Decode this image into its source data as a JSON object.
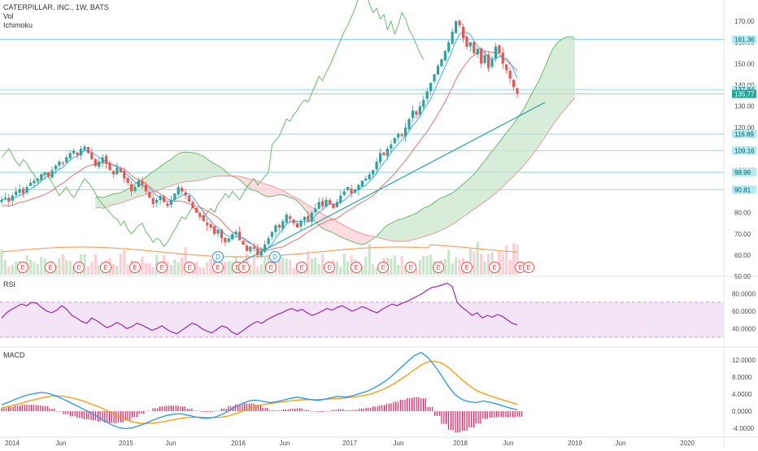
{
  "header": {
    "title": "CATERPILLAR, INC., 1W, BATS",
    "indicator_1": "Vol",
    "indicator_2": "Ichimoku"
  },
  "colors": {
    "price_up": "#26a69a",
    "price_down": "#ef5350",
    "cloud_bull": "#4caf50",
    "cloud_bear": "#ef5350",
    "conversion": "#2196f3",
    "base": "#d32f2f",
    "lagging": "#66bb6a",
    "rsi": "#9c27b0",
    "macd": "#2196f3",
    "signal": "#ff9800",
    "hist": "#e91e63",
    "trendline": "#26a69a",
    "hline": "#00bcd4",
    "axis_text": "#4a4a4a"
  },
  "price_axis": {
    "ticks": [
      "170.00",
      "160.00",
      "150.00",
      "140.00",
      "130.00",
      "120.00",
      "110.00",
      "100.00",
      "90.00",
      "80.00",
      "70.00",
      "60.00",
      "50.00"
    ],
    "badges": [
      {
        "label": "161.36",
        "style": "line"
      },
      {
        "label": "137.84",
        "style": "line"
      },
      {
        "label": "135.77",
        "style": "current"
      },
      {
        "label": "116.89",
        "style": "line"
      },
      {
        "label": "109.16",
        "style": "line"
      },
      {
        "label": "98.96",
        "style": "line"
      },
      {
        "label": "90.81",
        "style": "line"
      }
    ]
  },
  "rsi_panel": {
    "label": "RSI",
    "ticks": [
      "80.0000",
      "60.0000",
      "40.0000"
    ]
  },
  "macd_panel": {
    "label": "MACD",
    "ticks": [
      "12.0000",
      "8.0000",
      "4.0000",
      "0.0000",
      "-4.0000"
    ]
  },
  "time_axis": {
    "labels": [
      "2014",
      "Jun",
      "2015",
      "Jun",
      "2016",
      "Jun",
      "2017",
      "Jun",
      "2018",
      "Jun",
      "2019",
      "Jun",
      "2020"
    ]
  },
  "event_markers": [
    {
      "label": "E"
    },
    {
      "label": "E"
    },
    {
      "label": "E"
    },
    {
      "label": "E"
    },
    {
      "label": "E"
    },
    {
      "label": "E"
    },
    {
      "label": "E"
    },
    {
      "label": "E"
    },
    {
      "label": "E"
    },
    {
      "label": "D"
    },
    {
      "label": "E"
    },
    {
      "label": "D"
    },
    {
      "label": "E"
    },
    {
      "label": "E"
    },
    {
      "label": "E"
    },
    {
      "label": "E"
    },
    {
      "label": "E"
    },
    {
      "label": "E"
    },
    {
      "label": "E"
    },
    {
      "label": "E"
    },
    {
      "label": "E"
    },
    {
      "label": "E"
    },
    {
      "label": "E"
    }
  ],
  "chart_data": {
    "type": "candlestick",
    "ylim": [
      50,
      178
    ],
    "price_scale": "linear",
    "grid": false,
    "closes": [
      86,
      87,
      85,
      88,
      90,
      91,
      89,
      92,
      94,
      95,
      96,
      98,
      99,
      97,
      100,
      102,
      104,
      103,
      106,
      108,
      109,
      107,
      110,
      111,
      108,
      105,
      102,
      104,
      106,
      103,
      100,
      98,
      101,
      99,
      96,
      94,
      90,
      92,
      95,
      93,
      90,
      87,
      84,
      86,
      88,
      85,
      83,
      86,
      89,
      92,
      90,
      88,
      85,
      82,
      80,
      78,
      76,
      74,
      73,
      70,
      72,
      68,
      66,
      68,
      70,
      71,
      67,
      65,
      62,
      64,
      63,
      60,
      62,
      65,
      68,
      71,
      74,
      73,
      76,
      79,
      77,
      75,
      73,
      76,
      78,
      76,
      80,
      82,
      85,
      83,
      86,
      84,
      82,
      85,
      88,
      90,
      92,
      89,
      91,
      93,
      95,
      96,
      98,
      100,
      104,
      108,
      107,
      110,
      112,
      115,
      117,
      116,
      120,
      124,
      128,
      126,
      130,
      133,
      137,
      141,
      145,
      149,
      152,
      156,
      160,
      165,
      170,
      168,
      162,
      158,
      160,
      155,
      157,
      150,
      154,
      148,
      152,
      158,
      155,
      150,
      147,
      143,
      139,
      136
    ]
  },
  "rsi_data": {
    "type": "line",
    "ylim": [
      30,
      92
    ],
    "band": [
      30,
      70
    ],
    "values": [
      52,
      58,
      62,
      65,
      68,
      66,
      70,
      69,
      64,
      60,
      58,
      61,
      66,
      62,
      55,
      52,
      48,
      46,
      52,
      49,
      45,
      41,
      43,
      47,
      44,
      40,
      42,
      46,
      44,
      41,
      38,
      40,
      43,
      39,
      36,
      34,
      38,
      42,
      46,
      44,
      40,
      37,
      35,
      39,
      43,
      41,
      36,
      33,
      37,
      41,
      45,
      48,
      46,
      50,
      53,
      56,
      58,
      61,
      63,
      60,
      62,
      58,
      55,
      57,
      60,
      63,
      61,
      64,
      66,
      63,
      60,
      62,
      65,
      63,
      60,
      58,
      62,
      65,
      68,
      66,
      69,
      71,
      74,
      77,
      80,
      84,
      87,
      88,
      90,
      92,
      88,
      70,
      64,
      60,
      55,
      58,
      52,
      55,
      53,
      56,
      54,
      50,
      46,
      44
    ]
  },
  "macd_data": {
    "type": "line+histogram",
    "ylim": [
      -6,
      15
    ],
    "macd": [
      1.5,
      2.1,
      2.8,
      3.4,
      3.9,
      4.2,
      4.4,
      4.1,
      3.5,
      2.8,
      2.0,
      1.2,
      0.4,
      -0.4,
      -1.3,
      -2.3,
      -3.2,
      -3.8,
      -4.1,
      -3.9,
      -3.4,
      -2.8,
      -2.1,
      -1.5,
      -1.0,
      -0.7,
      -0.6,
      -0.9,
      -1.3,
      -1.6,
      -1.7,
      -1.4,
      -0.8,
      0.1,
      1.0,
      1.8,
      2.4,
      2.6,
      2.3,
      2.0,
      2.2,
      2.6,
      3.0,
      3.3,
      3.0,
      2.7,
      2.5,
      2.8,
      3.2,
      3.5,
      3.3,
      3.6,
      4.1,
      4.6,
      5.3,
      6.2,
      7.3,
      8.6,
      10.1,
      11.6,
      13.0,
      13.8,
      12.6,
      10.6,
      8.3,
      5.8,
      3.8,
      2.7,
      2.2,
      2.0,
      2.4,
      2.1,
      1.7,
      1.2,
      0.7,
      0.3
    ],
    "signal": [
      0.8,
      1.1,
      1.5,
      1.9,
      2.4,
      2.8,
      3.2,
      3.5,
      3.6,
      3.5,
      3.2,
      2.8,
      2.3,
      1.7,
      1.1,
      0.4,
      -0.4,
      -1.2,
      -1.9,
      -2.5,
      -2.8,
      -2.9,
      -2.8,
      -2.6,
      -2.3,
      -2.0,
      -1.7,
      -1.5,
      -1.4,
      -1.4,
      -1.5,
      -1.5,
      -1.4,
      -1.1,
      -0.6,
      0.0,
      0.6,
      1.1,
      1.5,
      1.8,
      2.0,
      2.2,
      2.4,
      2.6,
      2.7,
      2.7,
      2.7,
      2.8,
      2.9,
      3.0,
      3.1,
      3.3,
      3.5,
      3.8,
      4.2,
      4.8,
      5.5,
      6.4,
      7.4,
      8.5,
      9.7,
      10.8,
      11.6,
      11.7,
      11.3,
      10.2,
      8.8,
      7.3,
      6.0,
      4.9,
      4.2,
      3.6,
      3.1,
      2.6,
      2.1,
      1.6
    ],
    "hist": [
      0.7,
      1.0,
      1.3,
      1.5,
      1.5,
      1.4,
      1.2,
      0.6,
      -0.1,
      -0.7,
      -1.2,
      -1.6,
      -1.9,
      -2.1,
      -2.4,
      -2.7,
      -2.8,
      -2.6,
      -2.2,
      -1.4,
      -0.6,
      0.1,
      0.7,
      1.1,
      1.3,
      1.3,
      1.1,
      0.6,
      0.1,
      -0.2,
      -0.2,
      0.1,
      0.6,
      1.2,
      1.6,
      1.8,
      1.8,
      1.5,
      0.8,
      0.2,
      0.2,
      0.4,
      0.6,
      0.7,
      0.3,
      0.0,
      -0.2,
      0.0,
      0.3,
      0.5,
      0.2,
      0.3,
      0.6,
      0.8,
      1.1,
      1.4,
      1.8,
      2.2,
      2.7,
      3.1,
      3.3,
      3.0,
      1.0,
      -1.1,
      -3.0,
      -4.4,
      -5.0,
      -4.6,
      -3.8,
      -2.9,
      -1.8,
      -1.5,
      -1.4,
      -1.4,
      -1.4,
      -1.3
    ]
  }
}
